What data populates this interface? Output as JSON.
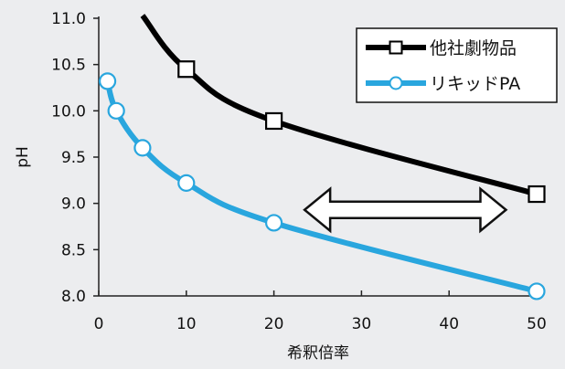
{
  "chart_data": {
    "type": "line",
    "xlabel": "希釈倍率",
    "ylabel": "pH",
    "xlim": [
      0,
      50
    ],
    "ylim": [
      8.0,
      11.0
    ],
    "xticks": [
      "0",
      "10",
      "20",
      "30",
      "40",
      "50"
    ],
    "yticks": [
      "8.0",
      "8.5",
      "9.0",
      "9.5",
      "10.0",
      "10.5",
      "11.0"
    ],
    "grid": false,
    "legend_position": "top-right",
    "series": [
      {
        "name": "他社劇物品",
        "color": "#000000",
        "marker": "square",
        "line_start": {
          "x": 5,
          "y": 11.03
        },
        "points": [
          {
            "x": 10,
            "y": 10.45
          },
          {
            "x": 20,
            "y": 9.89
          },
          {
            "x": 50,
            "y": 9.1
          }
        ]
      },
      {
        "name": "リキッドPA",
        "color": "#29a6de",
        "marker": "circle",
        "points": [
          {
            "x": 1,
            "y": 10.32
          },
          {
            "x": 2,
            "y": 10.0
          },
          {
            "x": 5,
            "y": 9.6
          },
          {
            "x": 10,
            "y": 9.22
          },
          {
            "x": 20,
            "y": 8.79
          },
          {
            "x": 50,
            "y": 8.05
          }
        ]
      }
    ],
    "annotation": {
      "type": "double-arrow",
      "x_from": 23.5,
      "x_to": 46.5,
      "y": 8.93
    }
  }
}
